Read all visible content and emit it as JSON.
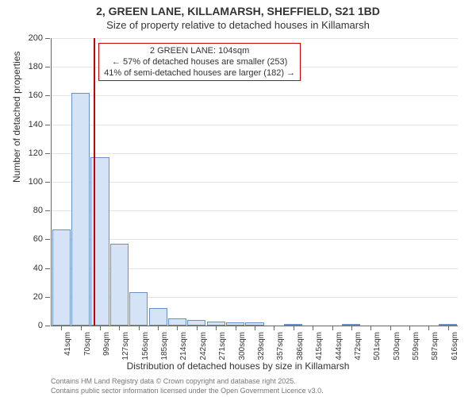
{
  "title": "2, GREEN LANE, KILLAMARSH, SHEFFIELD, S21 1BD",
  "subtitle": "Size of property relative to detached houses in Killamarsh",
  "ylabel": "Number of detached properties",
  "xlabel": "Distribution of detached houses by size in Killamarsh",
  "chart": {
    "type": "bar",
    "ylim": [
      0,
      200
    ],
    "ytick_step": 20,
    "bar_fill": "#d5e3f7",
    "bar_stroke": "#6b8fc9",
    "grid_color": "#e5e5e5",
    "axis_color": "#666666",
    "background": "#ffffff",
    "categories": [
      "41sqm",
      "70sqm",
      "99sqm",
      "127sqm",
      "156sqm",
      "185sqm",
      "214sqm",
      "242sqm",
      "271sqm",
      "300sqm",
      "329sqm",
      "357sqm",
      "386sqm",
      "415sqm",
      "444sqm",
      "472sqm",
      "501sqm",
      "530sqm",
      "559sqm",
      "587sqm",
      "616sqm"
    ],
    "values": [
      67,
      162,
      117,
      57,
      23,
      12,
      5,
      4,
      3,
      2,
      2,
      0,
      1,
      0,
      0,
      1,
      0,
      0,
      0,
      0,
      1
    ],
    "bar_width": 0.95,
    "reference_line": {
      "index_between": [
        1,
        2
      ],
      "fraction": 0.18,
      "color": "#cc0000"
    },
    "annotation": {
      "lines": [
        "2 GREEN LANE: 104sqm",
        "← 57% of detached houses are smaller (253)",
        "41% of semi-detached houses are larger (182) →"
      ],
      "border_color": "#cc0000",
      "background": "#ffffff",
      "fontsize": 11
    }
  },
  "footer": {
    "line1": "Contains HM Land Registry data © Crown copyright and database right 2025.",
    "line2": "Contains public sector information licensed under the Open Government Licence v3.0."
  }
}
